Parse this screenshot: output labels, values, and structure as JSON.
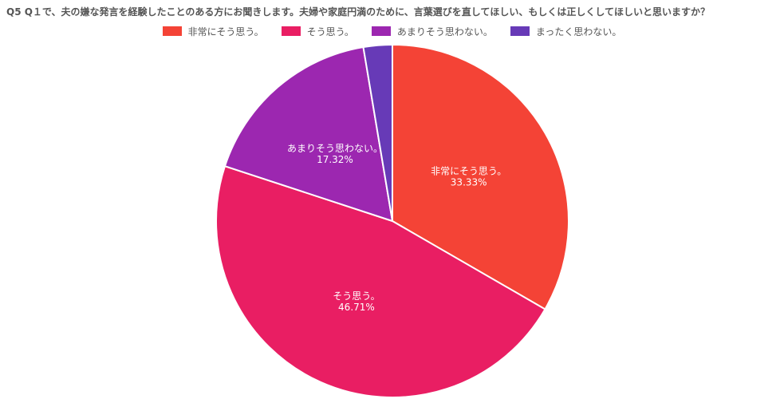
{
  "title": "Q5 Q１で、夫の嫌な発言を経験したことのある方にお聞きします。夫婦や家庭円満のために、言葉選びを直してほしい、もしくは正しくしてほしいと思いますか？",
  "chart_data": {
    "type": "pie",
    "title": "Q5 Q１で、夫の嫌な発言を経験したことのある方にお聞きします。夫婦や家庭円満のために、言葉選びを直してほしい、もしくは正しくしてほしいと思いますか？",
    "legend_position": "top",
    "slices": [
      {
        "label": "非常にそう思う。",
        "value": 33.33,
        "value_text": "33.33%",
        "color": "#f44336"
      },
      {
        "label": "そう思う。",
        "value": 46.71,
        "value_text": "46.71%",
        "color": "#e91e63"
      },
      {
        "label": "あまりそう思わない。",
        "value": 17.32,
        "value_text": "17.32%",
        "color": "#9c27b0"
      },
      {
        "label": "まったく思わない。",
        "value": 2.64,
        "value_text": "",
        "color": "#673ab7"
      }
    ]
  }
}
